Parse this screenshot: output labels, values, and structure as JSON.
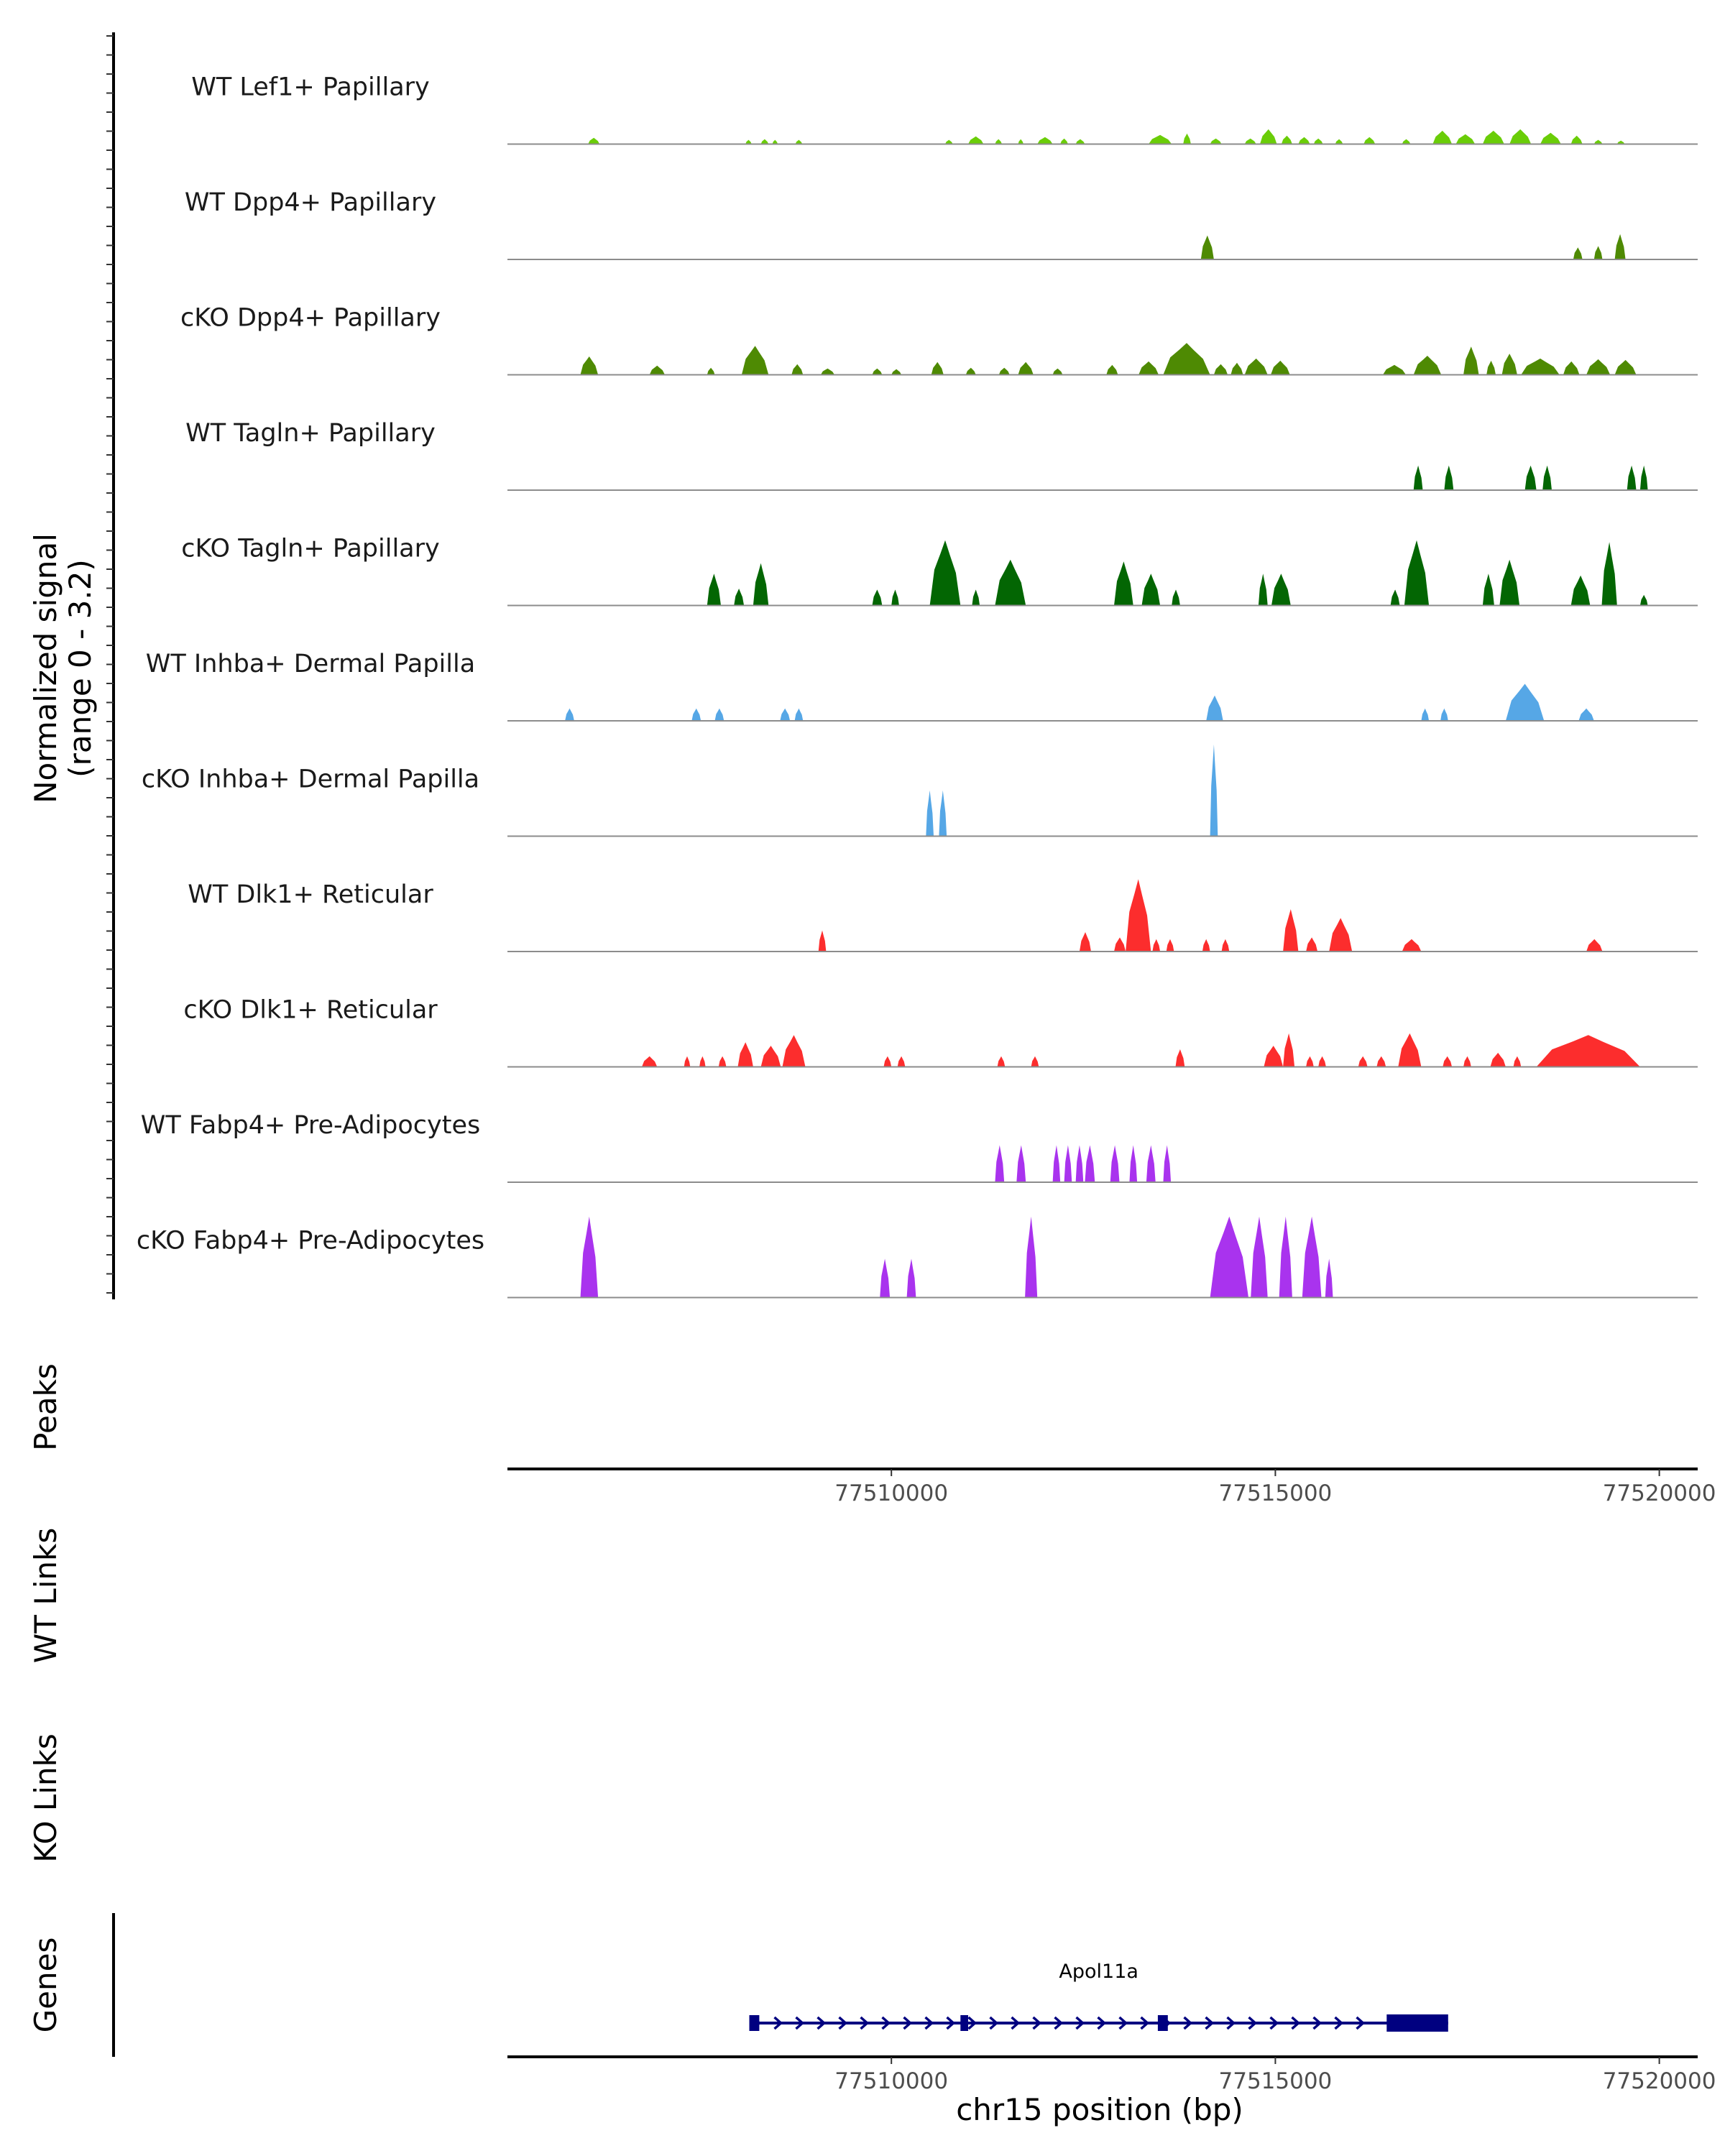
{
  "chart_data": {
    "type": "area",
    "title": "",
    "chromosome": "chr15",
    "xlabel": "chr15 position (bp)",
    "xlim": [
      77505000,
      77520500
    ],
    "xticks": [
      77510000,
      77515000,
      77520000
    ],
    "xtick_labels": [
      "77510000",
      "77515000",
      "77520000"
    ],
    "ylabel_line1": "Normalized signal",
    "ylabel_line2": "(range 0 - 3.2)",
    "ylim": [
      0,
      3.2
    ],
    "panel_titles": {
      "peaks": "Peaks",
      "wt_links": "WT Links",
      "ko_links": "KO Links",
      "genes": "Genes"
    },
    "tracks": [
      {
        "name": "WT Lef1+ Papillary",
        "color": "#6ACD08",
        "peaks": [
          [
            77506050,
            77506200,
            0.18
          ],
          [
            77508100,
            77508180,
            0.12
          ],
          [
            77508300,
            77508400,
            0.14
          ],
          [
            77508450,
            77508520,
            0.12
          ],
          [
            77508750,
            77508840,
            0.12
          ],
          [
            77510700,
            77510800,
            0.12
          ],
          [
            77511000,
            77511200,
            0.22
          ],
          [
            77511350,
            77511440,
            0.14
          ],
          [
            77511650,
            77511720,
            0.14
          ],
          [
            77511900,
            77512100,
            0.2
          ],
          [
            77512200,
            77512300,
            0.16
          ],
          [
            77512400,
            77512520,
            0.14
          ],
          [
            77513350,
            77513650,
            0.26
          ],
          [
            77513800,
            77513900,
            0.3
          ],
          [
            77514150,
            77514300,
            0.16
          ],
          [
            77514600,
            77514750,
            0.16
          ],
          [
            77514800,
            77515020,
            0.42
          ],
          [
            77515080,
            77515220,
            0.24
          ],
          [
            77515300,
            77515450,
            0.2
          ],
          [
            77515500,
            77515620,
            0.16
          ],
          [
            77515780,
            77515880,
            0.14
          ],
          [
            77516150,
            77516300,
            0.2
          ],
          [
            77516650,
            77516760,
            0.14
          ],
          [
            77517050,
            77517300,
            0.38
          ],
          [
            77517350,
            77517600,
            0.28
          ],
          [
            77517700,
            77517980,
            0.38
          ],
          [
            77518050,
            77518330,
            0.42
          ],
          [
            77518450,
            77518720,
            0.32
          ],
          [
            77518850,
            77519000,
            0.24
          ],
          [
            77519150,
            77519260,
            0.12
          ],
          [
            77519450,
            77519550,
            0.1
          ]
        ]
      },
      {
        "name": "WT Dpp4+ Papillary",
        "color": "#4E8A03",
        "peaks": [
          [
            77514030,
            77514200,
            0.68
          ],
          [
            77518880,
            77519000,
            0.34
          ],
          [
            77519150,
            77519260,
            0.38
          ],
          [
            77519420,
            77519560,
            0.72
          ]
        ]
      },
      {
        "name": "cKO Dpp4+ Papillary",
        "color": "#4E8A03",
        "peaks": [
          [
            77505950,
            77506180,
            0.52
          ],
          [
            77506850,
            77507050,
            0.26
          ],
          [
            77507600,
            77507700,
            0.2
          ],
          [
            77508050,
            77508400,
            0.82
          ],
          [
            77508700,
            77508850,
            0.3
          ],
          [
            77509080,
            77509260,
            0.18
          ],
          [
            77509750,
            77509880,
            0.18
          ],
          [
            77510000,
            77510130,
            0.16
          ],
          [
            77510520,
            77510680,
            0.36
          ],
          [
            77510970,
            77511100,
            0.2
          ],
          [
            77511400,
            77511540,
            0.2
          ],
          [
            77511650,
            77511850,
            0.36
          ],
          [
            77512100,
            77512230,
            0.18
          ],
          [
            77512800,
            77512950,
            0.28
          ],
          [
            77513220,
            77513480,
            0.38
          ],
          [
            77513540,
            77514150,
            0.9
          ],
          [
            77514200,
            77514380,
            0.3
          ],
          [
            77514420,
            77514580,
            0.34
          ],
          [
            77514600,
            77514900,
            0.46
          ],
          [
            77514940,
            77515190,
            0.4
          ],
          [
            77516400,
            77516700,
            0.28
          ],
          [
            77516800,
            77517160,
            0.54
          ],
          [
            77517450,
            77517650,
            0.8
          ],
          [
            77517750,
            77517870,
            0.4
          ],
          [
            77517950,
            77518150,
            0.6
          ],
          [
            77518200,
            77518700,
            0.46
          ],
          [
            77518750,
            77518960,
            0.38
          ],
          [
            77519050,
            77519360,
            0.44
          ],
          [
            77519420,
            77519700,
            0.42
          ]
        ]
      },
      {
        "name": "WT Tagln+ Papillary",
        "color": "#036603",
        "peaks": [
          [
            77516800,
            77516920,
            0.7
          ],
          [
            77517200,
            77517320,
            0.7
          ],
          [
            77518250,
            77518400,
            0.7
          ],
          [
            77518480,
            77518600,
            0.7
          ],
          [
            77519580,
            77519700,
            0.7
          ],
          [
            77519750,
            77519850,
            0.7
          ]
        ]
      },
      {
        "name": "cKO Tagln+ Papillary",
        "color": "#036603",
        "peaks": [
          [
            77507600,
            77507780,
            0.9
          ],
          [
            77507950,
            77508080,
            0.48
          ],
          [
            77508200,
            77508400,
            1.2
          ],
          [
            77509750,
            77509880,
            0.45
          ],
          [
            77510000,
            77510100,
            0.45
          ],
          [
            77510500,
            77510900,
            1.85
          ],
          [
            77511050,
            77511150,
            0.45
          ],
          [
            77511350,
            77511750,
            1.3
          ],
          [
            77512900,
            77513150,
            1.25
          ],
          [
            77513260,
            77513500,
            0.9
          ],
          [
            77513650,
            77513760,
            0.45
          ],
          [
            77514780,
            77514900,
            0.9
          ],
          [
            77514950,
            77515200,
            0.9
          ],
          [
            77516500,
            77516620,
            0.45
          ],
          [
            77516680,
            77517000,
            1.85
          ],
          [
            77517700,
            77517850,
            0.9
          ],
          [
            77517920,
            77518180,
            1.3
          ],
          [
            77518850,
            77519100,
            0.85
          ],
          [
            77519250,
            77519450,
            1.8
          ],
          [
            77519750,
            77519850,
            0.3
          ]
        ]
      },
      {
        "name": "WT Inhba+ Dermal Papilla",
        "color": "#56A7E6",
        "peaks": [
          [
            77505750,
            77505870,
            0.35
          ],
          [
            77507400,
            77507520,
            0.35
          ],
          [
            77507700,
            77507820,
            0.35
          ],
          [
            77508550,
            77508680,
            0.35
          ],
          [
            77508740,
            77508850,
            0.35
          ],
          [
            77514100,
            77514320,
            0.72
          ],
          [
            77516900,
            77517000,
            0.35
          ],
          [
            77517150,
            77517250,
            0.35
          ],
          [
            77518000,
            77518500,
            1.05
          ],
          [
            77518950,
            77519150,
            0.35
          ]
        ]
      },
      {
        "name": "cKO Inhba+ Dermal Papilla",
        "color": "#56A7E6",
        "peaks": [
          [
            77510450,
            77510550,
            1.3
          ],
          [
            77510620,
            77510720,
            1.3
          ],
          [
            77514150,
            77514250,
            2.6
          ]
        ]
      },
      {
        "name": "WT Dlk1+ Reticular",
        "color": "#FC2D2D",
        "peaks": [
          [
            77509050,
            77509150,
            0.6
          ],
          [
            77512450,
            77512600,
            0.55
          ],
          [
            77512900,
            77513050,
            0.4
          ],
          [
            77513050,
            77513380,
            2.05
          ],
          [
            77513400,
            77513500,
            0.35
          ],
          [
            77513580,
            77513680,
            0.35
          ],
          [
            77514050,
            77514150,
            0.35
          ],
          [
            77514300,
            77514400,
            0.35
          ],
          [
            77515100,
            77515300,
            1.2
          ],
          [
            77515400,
            77515550,
            0.4
          ],
          [
            77515700,
            77516000,
            0.95
          ],
          [
            77516650,
            77516900,
            0.35
          ],
          [
            77519050,
            77519260,
            0.35
          ]
        ]
      },
      {
        "name": "cKO Dlk1+ Reticular",
        "color": "#FC2D2D",
        "peaks": [
          [
            77506750,
            77506950,
            0.3
          ],
          [
            77507300,
            77507380,
            0.3
          ],
          [
            77507500,
            77507580,
            0.3
          ],
          [
            77507750,
            77507850,
            0.3
          ],
          [
            77508000,
            77508200,
            0.7
          ],
          [
            77508300,
            77508560,
            0.6
          ],
          [
            77508580,
            77508880,
            0.9
          ],
          [
            77509900,
            77510000,
            0.3
          ],
          [
            77510080,
            77510180,
            0.3
          ],
          [
            77511380,
            77511480,
            0.3
          ],
          [
            77511820,
            77511920,
            0.3
          ],
          [
            77513700,
            77513820,
            0.5
          ],
          [
            77514850,
            77515100,
            0.6
          ],
          [
            77515100,
            77515250,
            0.95
          ],
          [
            77515400,
            77515500,
            0.3
          ],
          [
            77515560,
            77515660,
            0.3
          ],
          [
            77516080,
            77516200,
            0.3
          ],
          [
            77516320,
            77516440,
            0.3
          ],
          [
            77516600,
            77516900,
            0.95
          ],
          [
            77517180,
            77517300,
            0.3
          ],
          [
            77517450,
            77517550,
            0.3
          ],
          [
            77517800,
            77518000,
            0.4
          ],
          [
            77518100,
            77518200,
            0.3
          ],
          [
            77518400,
            77519750,
            0.9
          ]
        ]
      },
      {
        "name": "WT Fabp4+ Pre-Adipocytes",
        "color": "#A933EE",
        "peaks": [
          [
            77511350,
            77511470,
            1.05
          ],
          [
            77511630,
            77511750,
            1.05
          ],
          [
            77512100,
            77512200,
            1.05
          ],
          [
            77512250,
            77512350,
            1.05
          ],
          [
            77512400,
            77512500,
            1.05
          ],
          [
            77512520,
            77512650,
            1.05
          ],
          [
            77512850,
            77512970,
            1.05
          ],
          [
            77513100,
            77513200,
            1.05
          ],
          [
            77513320,
            77513440,
            1.05
          ],
          [
            77513540,
            77513640,
            1.05
          ]
        ]
      },
      {
        "name": "cKO Fabp4+ Pre-Adipocytes",
        "color": "#A933EE",
        "peaks": [
          [
            77505950,
            77506180,
            2.3
          ],
          [
            77509850,
            77509980,
            1.1
          ],
          [
            77510200,
            77510320,
            1.1
          ],
          [
            77511740,
            77511900,
            2.3
          ],
          [
            77514150,
            77514650,
            2.3
          ],
          [
            77514680,
            77514900,
            2.3
          ],
          [
            77515050,
            77515220,
            2.3
          ],
          [
            77515350,
            77515600,
            2.3
          ],
          [
            77515650,
            77515750,
            1.1
          ]
        ]
      }
    ],
    "gene": {
      "name": "Apol11a",
      "start": 77508150,
      "end": 77517250,
      "strand": "+",
      "exons": [
        [
          77508150,
          77508280
        ],
        [
          77510900,
          77511000
        ],
        [
          77513470,
          77513600
        ],
        [
          77516450,
          77517250
        ]
      ],
      "color": "#000080"
    }
  }
}
